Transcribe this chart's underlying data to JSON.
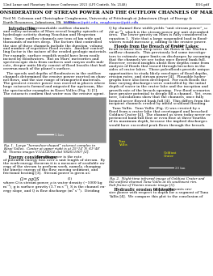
{
  "bg_color": "#ffffff",
  "fig_width": 2.64,
  "fig_height": 3.41,
  "dpi": 100
}
